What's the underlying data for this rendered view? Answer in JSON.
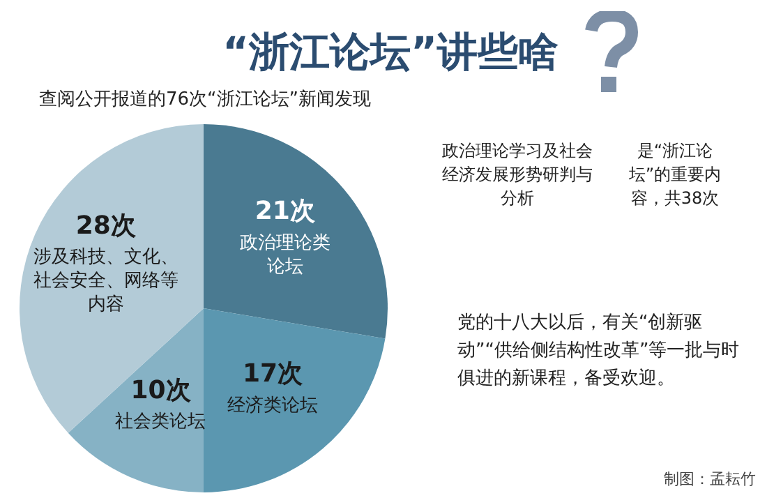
{
  "chart_data": {
    "type": "pie",
    "title": "“浙江论坛”讲些啥",
    "subtitle": "查阅公开报道的76次“浙江论坛”新闻发现",
    "categories": [
      "政治理论类论坛",
      "经济类论坛",
      "社会类论坛",
      "涉及科技、文化、社会安全、网络等内容"
    ],
    "values": [
      21,
      17,
      10,
      28
    ],
    "value_labels": [
      "21次",
      "17次",
      "10次",
      "28次"
    ],
    "colors": [
      "#4a7a91",
      "#5b97b0",
      "#86b2c5",
      "#b3cbd7"
    ],
    "legend": false,
    "annotations": [
      "政治理论学习及社会经济发展形势研判与分析",
      "是“浙江论坛”的重要内容，共38次",
      "党的十八大以后，有关“创新驱动”“供给侧结构性改革”等一批与时俱进的新课程，备受欢迎。",
      "制图：孟耘竹"
    ]
  }
}
